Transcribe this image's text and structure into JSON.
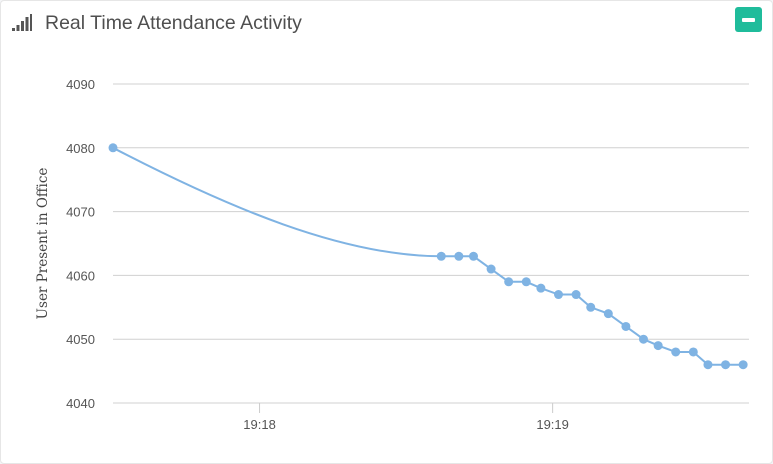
{
  "header": {
    "title": "Real Time Attendance Activity",
    "icon": "signal-bars-icon",
    "collapse_icon": "minus-icon",
    "accent_color": "#1fbc9b"
  },
  "chart_data": {
    "type": "line",
    "title": "",
    "xlabel": "",
    "ylabel": "User Present in Office",
    "ylim": [
      4040,
      4090
    ],
    "yticks": [
      4040,
      4050,
      4060,
      4070,
      4080,
      4090
    ],
    "xticks": [
      {
        "value": 18,
        "label": "19:18"
      },
      {
        "value": 19,
        "label": "19:19"
      }
    ],
    "xlim": [
      17.5,
      19.67
    ],
    "grid": true,
    "line_color": "#7fb3e3",
    "series": [
      {
        "x": [
          17.5,
          18.62,
          18.68,
          18.73,
          18.79,
          18.85,
          18.91,
          18.96,
          19.02,
          19.08,
          19.13,
          19.19,
          19.25,
          19.31,
          19.36,
          19.42,
          19.48,
          19.53,
          19.59,
          19.65
        ],
        "y": [
          4080,
          4063,
          4063,
          4063,
          4061,
          4059,
          4059,
          4058,
          4057,
          4057,
          4055,
          4054,
          4052,
          4050,
          4049,
          4048,
          4048,
          4046,
          4046,
          4046
        ]
      }
    ]
  }
}
